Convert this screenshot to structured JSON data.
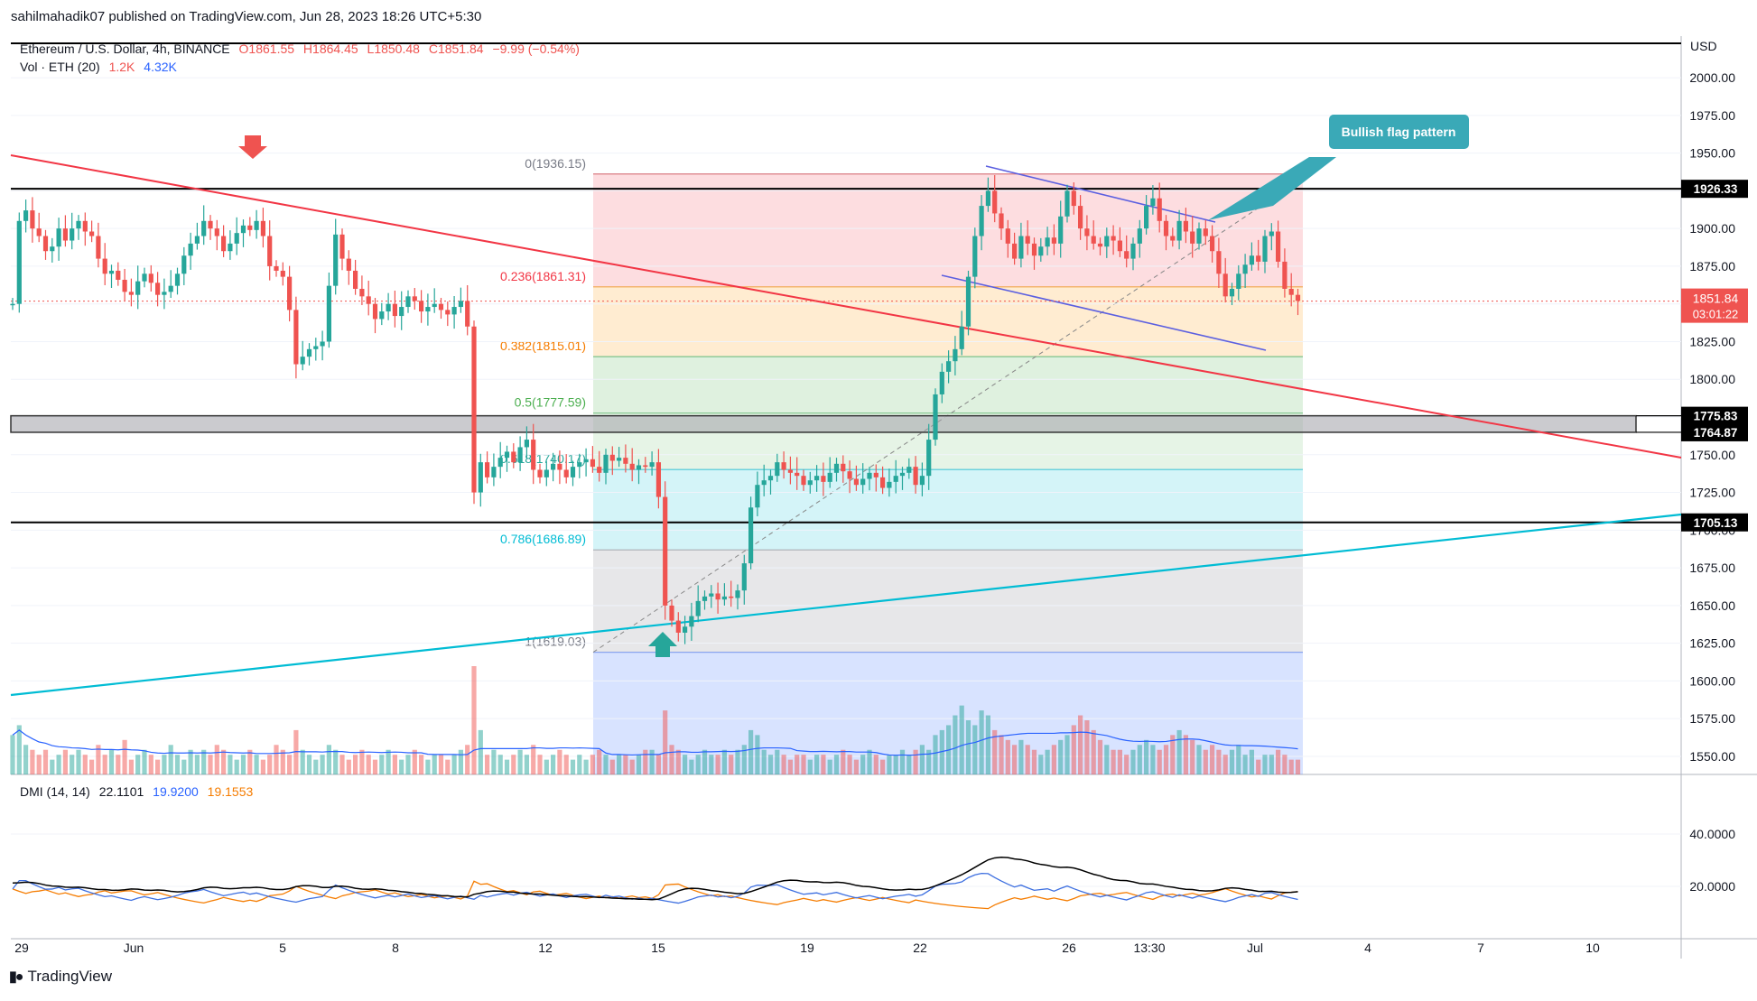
{
  "publication": "sahilmahadik07 published on TradingView.com, Jun 28, 2023 18:26 UTC+5:30",
  "footer_brand": "TradingView",
  "legend": {
    "symbol": "Ethereum / U.S. Dollar, 4h, BINANCE",
    "o": "O1861.55",
    "h": "H1864.45",
    "l": "L1850.48",
    "c": "C1851.84",
    "change": "−9.99 (−0.54%)",
    "vol_label": "Vol · ETH (20)",
    "vol_v1": "1.2K",
    "vol_v2": "4.32K",
    "dmi_label": "DMI (14, 14)",
    "dmi_adx": "22.1101",
    "dmi_plus": "19.9200",
    "dmi_minus": "19.1553"
  },
  "colors": {
    "up": "#26a69a",
    "down": "#ef5350",
    "trend_red": "#f23645",
    "trend_cyan": "#00bcd4",
    "flag": "#5b5fe0",
    "adx": "#000000",
    "di_plus": "#3d6fe0",
    "di_minus": "#f57c00",
    "callout": "#3aa9b7"
  },
  "chart_data": {
    "type": "candlestick",
    "price_axis": {
      "currency": "USD",
      "ticks": [
        "2000.00",
        "1975.00",
        "1950.00",
        "1925.00",
        "1900.00",
        "1875.00",
        "1850.00",
        "1825.00",
        "1800.00",
        "1775.00",
        "1750.00",
        "1725.00",
        "1700.00",
        "1675.00",
        "1650.00",
        "1625.00",
        "1600.00",
        "1575.00",
        "1550.00"
      ],
      "range": [
        1538,
        2018
      ]
    },
    "time_axis": {
      "ticks": [
        "29",
        "Jun",
        "5",
        "8",
        "12",
        "15",
        "19",
        "22",
        "26",
        "13:30",
        "Jul",
        "4",
        "7",
        "10"
      ]
    },
    "last_price": "1851.84",
    "countdown": "03:01:22",
    "levels": [
      {
        "label": "1926.33",
        "value": 1926.33
      },
      {
        "label": "1775.83",
        "value": 1775.83
      },
      {
        "label": "1764.87",
        "value": 1764.87
      },
      {
        "label": "1705.13",
        "value": 1705.13
      }
    ],
    "fib": {
      "high": 1936.15,
      "low": 1619.03,
      "levels": [
        {
          "label": "0(1936.15)",
          "value": 1936.15
        },
        {
          "label": "0.236(1861.31)",
          "value": 1861.31
        },
        {
          "label": "0.382(1815.01)",
          "value": 1815.01
        },
        {
          "label": "0.5(1777.59)",
          "value": 1777.59
        },
        {
          "label": "0.618(1740.17)",
          "value": 1740.17
        },
        {
          "label": "0.786(1686.89)",
          "value": 1686.89
        },
        {
          "label": "1(1619.03)",
          "value": 1619.03
        }
      ]
    },
    "annotation": "Bullish flag pattern",
    "closes": [
      1850,
      1905,
      1912,
      1900,
      1895,
      1885,
      1888,
      1900,
      1892,
      1900,
      1905,
      1898,
      1895,
      1880,
      1870,
      1872,
      1866,
      1858,
      1856,
      1865,
      1870,
      1864,
      1856,
      1858,
      1862,
      1870,
      1882,
      1890,
      1895,
      1905,
      1900,
      1895,
      1885,
      1890,
      1897,
      1902,
      1899,
      1905,
      1895,
      1875,
      1872,
      1868,
      1846,
      1810,
      1815,
      1820,
      1822,
      1825,
      1862,
      1896,
      1880,
      1872,
      1860,
      1855,
      1850,
      1840,
      1845,
      1850,
      1842,
      1848,
      1855,
      1852,
      1845,
      1848,
      1850,
      1846,
      1843,
      1848,
      1852,
      1835,
      1725,
      1745,
      1735,
      1742,
      1748,
      1752,
      1745,
      1755,
      1760,
      1740,
      1735,
      1740,
      1744,
      1740,
      1735,
      1742,
      1745,
      1747,
      1742,
      1738,
      1750,
      1746,
      1748,
      1744,
      1740,
      1743,
      1742,
      1745,
      1722,
      1650,
      1640,
      1632,
      1636,
      1643,
      1653,
      1656,
      1658,
      1654,
      1656,
      1655,
      1660,
      1678,
      1715,
      1730,
      1733,
      1736,
      1745,
      1740,
      1738,
      1736,
      1730,
      1733,
      1736,
      1732,
      1738,
      1744,
      1739,
      1734,
      1730,
      1734,
      1738,
      1735,
      1728,
      1732,
      1736,
      1738,
      1742,
      1730,
      1736,
      1760,
      1790,
      1805,
      1812,
      1820,
      1835,
      1868,
      1895,
      1915,
      1925,
      1910,
      1900,
      1890,
      1880,
      1895,
      1890,
      1882,
      1888,
      1894,
      1890,
      1908,
      1925,
      1915,
      1900,
      1895,
      1890,
      1888,
      1895,
      1892,
      1885,
      1880,
      1890,
      1900,
      1915,
      1920,
      1905,
      1895,
      1892,
      1905,
      1898,
      1890,
      1900,
      1895,
      1885,
      1870,
      1855,
      1860,
      1870,
      1876,
      1882,
      1878,
      1895,
      1898,
      1878,
      1860,
      1856,
      1852
    ],
    "volume": [
      8,
      10,
      6,
      5,
      4,
      5,
      3,
      4,
      5,
      4,
      5,
      4,
      3,
      6,
      4,
      5,
      4,
      7,
      3,
      4,
      5,
      4,
      3,
      4,
      6,
      4,
      3,
      5,
      4,
      5,
      4,
      6,
      5,
      4,
      3,
      4,
      5,
      4,
      3,
      4,
      6,
      5,
      4,
      9,
      5,
      4,
      3,
      4,
      6,
      5,
      4,
      3,
      4,
      5,
      4,
      3,
      4,
      5,
      4,
      3,
      4,
      5,
      4,
      3,
      4,
      4,
      3,
      4,
      5,
      6,
      22,
      9,
      4,
      5,
      4,
      3,
      4,
      5,
      4,
      6,
      4,
      3,
      4,
      5,
      4,
      3,
      4,
      3,
      4,
      5,
      4,
      3,
      4,
      4,
      3,
      4,
      5,
      5,
      4,
      13,
      6,
      5,
      4,
      3,
      4,
      5,
      4,
      4,
      5,
      4,
      5,
      6,
      9,
      8,
      5,
      4,
      5,
      4,
      3,
      4,
      4,
      3,
      4,
      4,
      3,
      4,
      5,
      4,
      3,
      4,
      5,
      4,
      3,
      4,
      4,
      5,
      4,
      5,
      6,
      5,
      8,
      9,
      10,
      12,
      14,
      11,
      10,
      13,
      12,
      9,
      8,
      7,
      6,
      7,
      6,
      5,
      4,
      5,
      6,
      7,
      8,
      10,
      12,
      11,
      9,
      7,
      6,
      5,
      5,
      4,
      5,
      6,
      7,
      6,
      5,
      6,
      8,
      9,
      8,
      7,
      6,
      5,
      6,
      5,
      4,
      5,
      6,
      4,
      5,
      3,
      4,
      4,
      5,
      4,
      3,
      3
    ]
  }
}
